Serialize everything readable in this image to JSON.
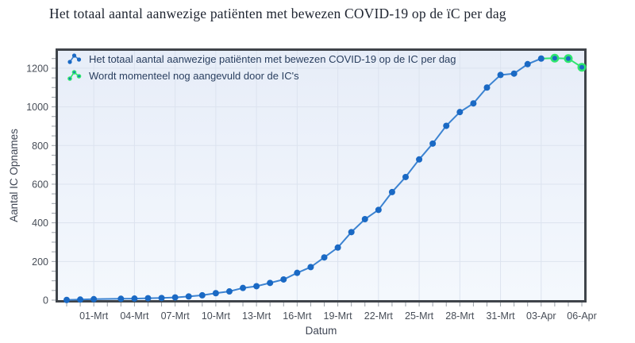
{
  "chart_data": {
    "type": "line",
    "title": "Het totaal aantal aanwezige patiënten met bewezen COVID-19 op de ïC per dag",
    "xlabel": "Datum",
    "ylabel": "Aantal IC Opnames",
    "ylim": [
      0,
      1290
    ],
    "grid": true,
    "legend_position": "top-left-inside",
    "y_ticks": [
      0,
      200,
      400,
      600,
      800,
      1000,
      1200
    ],
    "x_ticks": [
      "01-Mrt",
      "04-Mrt",
      "07-Mrt",
      "10-Mrt",
      "13-Mrt",
      "16-Mrt",
      "19-Mrt",
      "22-Mrt",
      "25-Mrt",
      "28-Mrt",
      "31-Mrt",
      "03-Apr",
      "06-Apr"
    ],
    "series": [
      {
        "name": "Het totaal aantal aanwezige patiënten met bewezen COVID-19 op de IC per dag",
        "marker_color": "#1a69c4",
        "line_color": "#3c83d1",
        "x": [
          "28-Feb",
          "29-Feb",
          "01-Mrt",
          "03-Mrt",
          "04-Mrt",
          "05-Mrt",
          "06-Mrt",
          "07-Mrt",
          "08-Mrt",
          "09-Mrt",
          "10-Mrt",
          "11-Mrt",
          "12-Mrt",
          "13-Mrt",
          "14-Mrt",
          "15-Mrt",
          "16-Mrt",
          "17-Mrt",
          "18-Mrt",
          "19-Mrt",
          "20-Mrt",
          "21-Mrt",
          "22-Mrt",
          "23-Mrt",
          "24-Mrt",
          "25-Mrt",
          "26-Mrt",
          "27-Mrt",
          "28-Mrt",
          "29-Mrt",
          "30-Mrt",
          "31-Mrt",
          "01-Apr",
          "02-Apr",
          "03-Apr"
        ],
        "values": [
          1,
          3,
          5,
          7,
          8,
          10,
          11,
          14,
          19,
          25,
          36,
          45,
          63,
          72,
          89,
          107,
          141,
          171,
          221,
          272,
          352,
          419,
          467,
          559,
          637,
          728,
          810,
          902,
          973,
          1018,
          1100,
          1165,
          1172,
          1221,
          1250
        ]
      },
      {
        "name": "Wordt momenteel nog aangevuld door de IC's",
        "marker_color": "#2ee56e",
        "marker_center_color": "#1a69c4",
        "line_color": "#2ee56e",
        "x": [
          "03-Apr",
          "04-Apr",
          "05-Apr",
          "06-Apr"
        ],
        "values": [
          1250,
          1252,
          1250,
          1205
        ]
      }
    ]
  },
  "colors": {
    "page_bg": "#ffffff",
    "plot_bg_top": "#e7edf8",
    "plot_bg_bottom": "#f4f8fd",
    "grid": "#dce3ef",
    "border": "#3f444a",
    "tick": "#9aa0a8",
    "tick_label": "#474d57",
    "axis_title": "#3f4654",
    "title": "#1e2430",
    "legend_text": "#2a3f5f"
  }
}
